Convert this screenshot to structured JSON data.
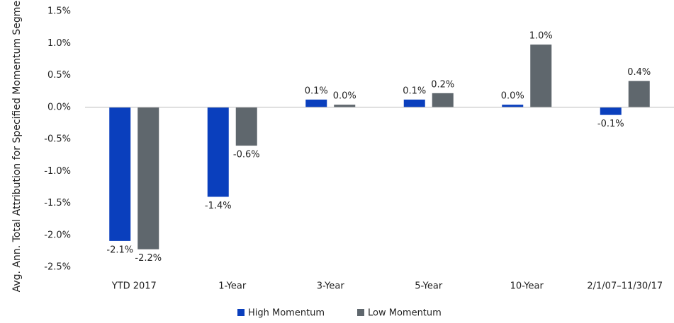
{
  "chart_data": {
    "type": "bar",
    "y_label": "Avg. Ann. Total Attribution for Specified Momentum Segment",
    "categories": [
      "YTD 2017",
      "1-Year",
      "3-Year",
      "5-Year",
      "10-Year",
      "2/1/07–11/30/17"
    ],
    "series": [
      {
        "name": "High Momentum",
        "color": "#0a3fbd",
        "values": [
          -2.09,
          -1.4,
          0.12,
          0.12,
          0.04,
          -0.12
        ],
        "value_labels": [
          "-2.1%",
          "-1.4%",
          "0.1%",
          "0.1%",
          "0.0%",
          "-0.1%"
        ]
      },
      {
        "name": "Low Momentum",
        "color": "#5f676d",
        "values": [
          -2.22,
          -0.6,
          0.04,
          0.22,
          0.98,
          0.41
        ],
        "value_labels": [
          "-2.2%",
          "-0.6%",
          "0.0%",
          "0.2%",
          "1.0%",
          "0.4%"
        ]
      }
    ],
    "ylim": [
      -2.5,
      1.5
    ],
    "yticks": [
      {
        "value": -2.5,
        "label": "-2.5%"
      },
      {
        "value": -2.0,
        "label": "-2.0%"
      },
      {
        "value": -1.5,
        "label": "-1.5%"
      },
      {
        "value": -1.0,
        "label": "-1.0%"
      },
      {
        "value": -0.5,
        "label": "-0.5%"
      },
      {
        "value": 0.0,
        "label": "0.0%"
      },
      {
        "value": 0.5,
        "label": "0.5%"
      },
      {
        "value": 1.0,
        "label": "1.0%"
      },
      {
        "value": 1.5,
        "label": "1.5%"
      }
    ],
    "grid": false,
    "legend": "bottom"
  }
}
